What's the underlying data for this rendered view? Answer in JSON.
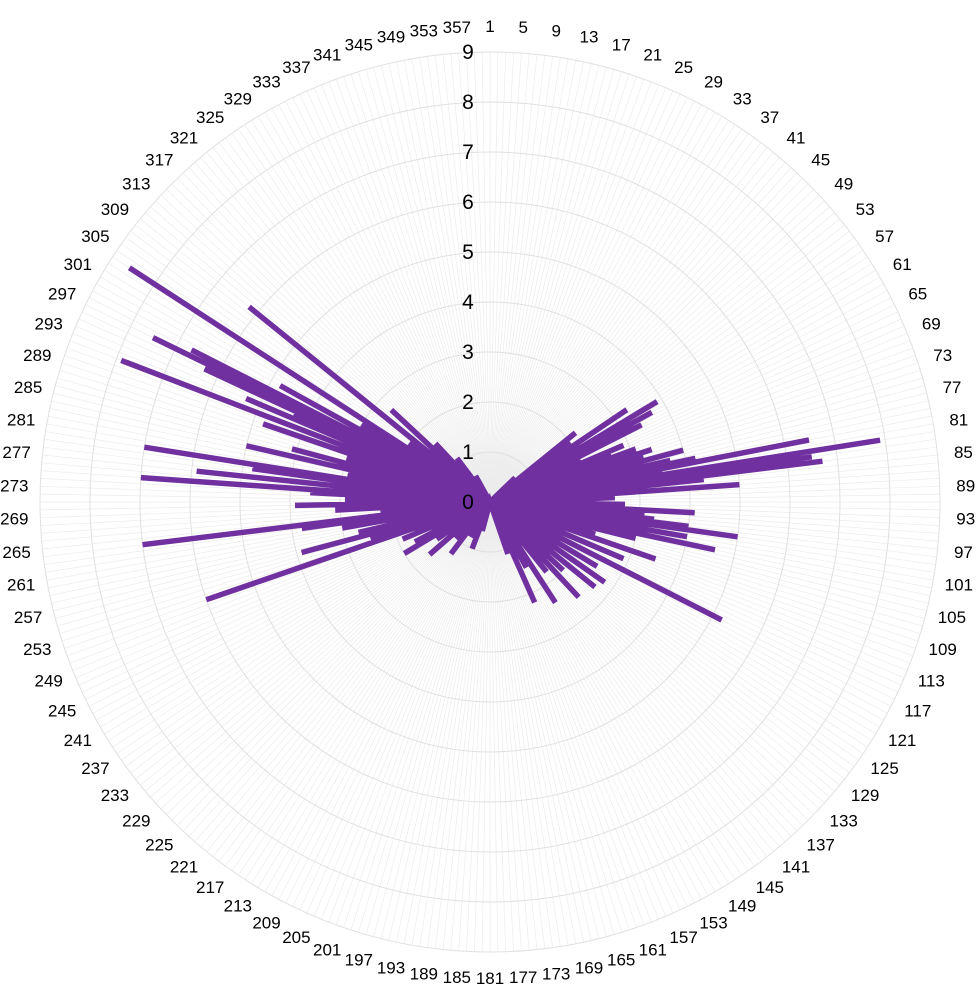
{
  "chart_data": {
    "type": "radar",
    "title": "",
    "angle_unit": "degrees",
    "category_start": 1,
    "category_end": 360,
    "category_step": 1,
    "label_every": 4,
    "rlim": [
      0,
      9
    ],
    "r_ticks": [
      "0",
      "1",
      "2",
      "3",
      "4",
      "5",
      "6",
      "7",
      "8",
      "9"
    ],
    "grid": true,
    "legend": "none",
    "series": [
      {
        "color": "#7030a0",
        "points": [
          {
            "angle": 47,
            "value": 0.7
          },
          {
            "angle": 52,
            "value": 2.2
          },
          {
            "angle": 55,
            "value": 2.0
          },
          {
            "angle": 57,
            "value": 3.3
          },
          {
            "angle": 60,
            "value": 3.9
          },
          {
            "angle": 62,
            "value": 3.7
          },
          {
            "angle": 63,
            "value": 2.2
          },
          {
            "angle": 64,
            "value": 3.4
          },
          {
            "angle": 66,
            "value": 2.0
          },
          {
            "angle": 68,
            "value": 2.9
          },
          {
            "angle": 70,
            "value": 2.6
          },
          {
            "angle": 71,
            "value": 3.1
          },
          {
            "angle": 73,
            "value": 3.4
          },
          {
            "angle": 74,
            "value": 3.2
          },
          {
            "angle": 75,
            "value": 2.0
          },
          {
            "angle": 76,
            "value": 4.0
          },
          {
            "angle": 77,
            "value": 3.0
          },
          {
            "angle": 78,
            "value": 3.7
          },
          {
            "angle": 79,
            "value": 4.2
          },
          {
            "angle": 80,
            "value": 6.5
          },
          {
            "angle": 81,
            "value": 3.5
          },
          {
            "angle": 82,
            "value": 7.9
          },
          {
            "angle": 83,
            "value": 6.5
          },
          {
            "angle": 84,
            "value": 6.7
          },
          {
            "angle": 85,
            "value": 4.3
          },
          {
            "angle": 86,
            "value": 1.7
          },
          {
            "angle": 87,
            "value": 5.0
          },
          {
            "angle": 88,
            "value": 1.0
          },
          {
            "angle": 89,
            "value": 2.5
          },
          {
            "angle": 90,
            "value": 1.0
          },
          {
            "angle": 91,
            "value": 2.0
          },
          {
            "angle": 92,
            "value": 2.7
          },
          {
            "angle": 93,
            "value": 2.3
          },
          {
            "angle": 94,
            "value": 4.1
          },
          {
            "angle": 95,
            "value": 3.1
          },
          {
            "angle": 96,
            "value": 2.3
          },
          {
            "angle": 97,
            "value": 3.3
          },
          {
            "angle": 98,
            "value": 4.0
          },
          {
            "angle": 99,
            "value": 5.0
          },
          {
            "angle": 100,
            "value": 2.6
          },
          {
            "angle": 101,
            "value": 4.0
          },
          {
            "angle": 102,
            "value": 3.1
          },
          {
            "angle": 103,
            "value": 4.6
          },
          {
            "angle": 105,
            "value": 3.0
          },
          {
            "angle": 108,
            "value": 2.2
          },
          {
            "angle": 110,
            "value": 3.5
          },
          {
            "angle": 114,
            "value": 2.9
          },
          {
            "angle": 118,
            "value": 5.2
          },
          {
            "angle": 122,
            "value": 2.5
          },
          {
            "angle": 126,
            "value": 2.8
          },
          {
            "angle": 130,
            "value": 2.7
          },
          {
            "angle": 134,
            "value": 2.0
          },
          {
            "angle": 138,
            "value": 2.6
          },
          {
            "angle": 142,
            "value": 1.8
          },
          {
            "angle": 148,
            "value": 2.4
          },
          {
            "angle": 152,
            "value": 1.5
          },
          {
            "angle": 157,
            "value": 2.2
          },
          {
            "angle": 162,
            "value": 1.1
          },
          {
            "angle": 196,
            "value": 0.6
          },
          {
            "angle": 202,
            "value": 1.0
          },
          {
            "angle": 210,
            "value": 0.8
          },
          {
            "angle": 218,
            "value": 1.3
          },
          {
            "angle": 224,
            "value": 1.0
          },
          {
            "angle": 230,
            "value": 1.6
          },
          {
            "angle": 236,
            "value": 1.3
          },
          {
            "angle": 240,
            "value": 2.0
          },
          {
            "angle": 243,
            "value": 1.7
          },
          {
            "angle": 245,
            "value": 1.0
          },
          {
            "angle": 248,
            "value": 1.9
          },
          {
            "angle": 250,
            "value": 1.5
          },
          {
            "angle": 252,
            "value": 6.0
          },
          {
            "angle": 254,
            "value": 2.5
          },
          {
            "angle": 256,
            "value": 3.9
          },
          {
            "angle": 258,
            "value": 2.7
          },
          {
            "angle": 260,
            "value": 2.0
          },
          {
            "angle": 261,
            "value": 3.0
          },
          {
            "angle": 263,
            "value": 3.8
          },
          {
            "angle": 264,
            "value": 7.0
          },
          {
            "angle": 266,
            "value": 2.2
          },
          {
            "angle": 268,
            "value": 3.1
          },
          {
            "angle": 269,
            "value": 2.0
          },
          {
            "angle": 270,
            "value": 3.9
          },
          {
            "angle": 272,
            "value": 2.9
          },
          {
            "angle": 274,
            "value": 3.6
          },
          {
            "angle": 275,
            "value": 7.0
          },
          {
            "angle": 277,
            "value": 5.9
          },
          {
            "angle": 279,
            "value": 4.8
          },
          {
            "angle": 280,
            "value": 7.0
          },
          {
            "angle": 282,
            "value": 2.9
          },
          {
            "angle": 284,
            "value": 5.0
          },
          {
            "angle": 286,
            "value": 4.1
          },
          {
            "angle": 288,
            "value": 3.0
          },
          {
            "angle": 290,
            "value": 4.8
          },
          {
            "angle": 292,
            "value": 7.9
          },
          {
            "angle": 294,
            "value": 5.3
          },
          {
            "angle": 295,
            "value": 4.3
          },
          {
            "angle": 296,
            "value": 6.3
          },
          {
            "angle": 297,
            "value": 7.5
          },
          {
            "angle": 298,
            "value": 6.7
          },
          {
            "angle": 300,
            "value": 4.8
          },
          {
            "angle": 302,
            "value": 3.0
          },
          {
            "angle": 304,
            "value": 8.6
          },
          {
            "angle": 307,
            "value": 2.0
          },
          {
            "angle": 310,
            "value": 6.2
          },
          {
            "angle": 314,
            "value": 2.7
          },
          {
            "angle": 318,
            "value": 1.6
          },
          {
            "angle": 324,
            "value": 1.1
          },
          {
            "angle": 332,
            "value": 0.6
          }
        ]
      }
    ]
  }
}
